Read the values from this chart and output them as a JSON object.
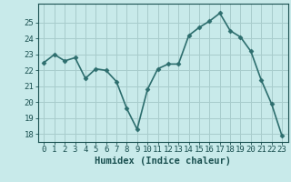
{
  "x": [
    0,
    1,
    2,
    3,
    4,
    5,
    6,
    7,
    8,
    9,
    10,
    11,
    12,
    13,
    14,
    15,
    16,
    17,
    18,
    19,
    20,
    21,
    22,
    23
  ],
  "y": [
    22.5,
    23.0,
    22.6,
    22.8,
    21.5,
    22.1,
    22.0,
    21.3,
    19.6,
    18.3,
    20.8,
    22.1,
    22.4,
    22.4,
    24.2,
    24.7,
    25.1,
    25.6,
    24.5,
    24.1,
    23.2,
    21.4,
    19.9,
    17.9
  ],
  "line_color": "#2d6e6e",
  "marker": "D",
  "markersize": 2.5,
  "bg_color": "#c8eaea",
  "grid_color": "#a8cccc",
  "tick_color": "#1a5050",
  "xlabel": "Humidex (Indice chaleur)",
  "ylim": [
    17.5,
    26.2
  ],
  "yticks": [
    18,
    19,
    20,
    21,
    22,
    23,
    24,
    25
  ],
  "xticks": [
    0,
    1,
    2,
    3,
    4,
    5,
    6,
    7,
    8,
    9,
    10,
    11,
    12,
    13,
    14,
    15,
    16,
    17,
    18,
    19,
    20,
    21,
    22,
    23
  ],
  "xlabel_fontsize": 7.5,
  "tick_fontsize": 6.5,
  "linewidth": 1.2
}
